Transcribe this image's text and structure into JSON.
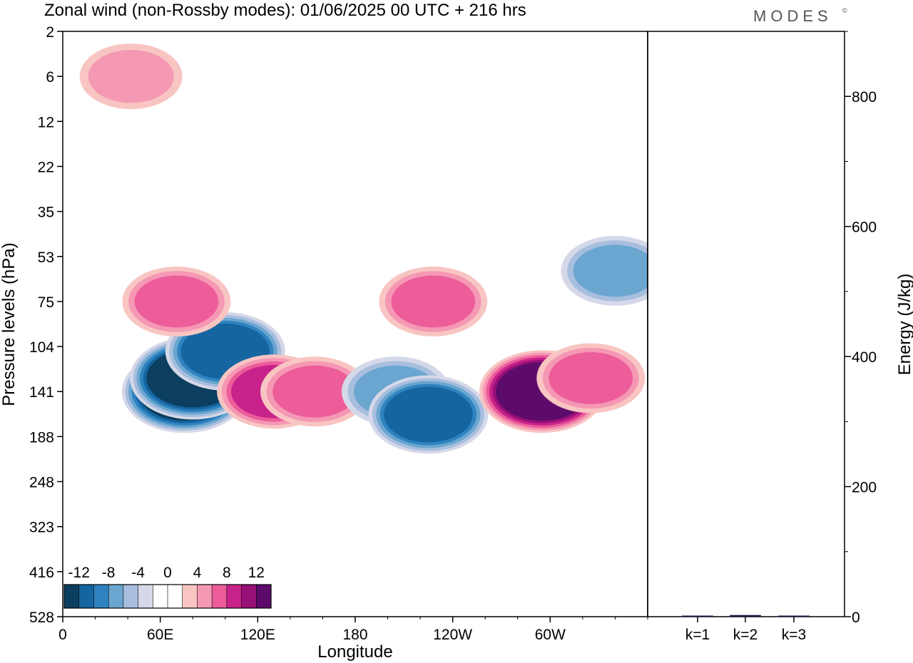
{
  "title": "Zonal wind (non-Rossby modes):  01/06/2025  00 UTC  + 216 hrs",
  "logo": "MODES",
  "logo_mark": "©",
  "chart_data": [
    {
      "type": "heatmap",
      "title": "Zonal wind (non-Rossby modes):  01/06/2025  00 UTC  + 216 hrs",
      "xlabel": "Longitude",
      "ylabel": "Pressure levels (hPa)",
      "x_ticks": [
        "0",
        "60E",
        "120E",
        "180",
        "120W",
        "60W"
      ],
      "x_tick_values": [
        0,
        60,
        120,
        180,
        240,
        300
      ],
      "xlim": [
        0,
        360
      ],
      "y_ticks": [
        "2",
        "6",
        "12",
        "22",
        "35",
        "53",
        "75",
        "104",
        "141",
        "188",
        "248",
        "323",
        "416",
        "528"
      ],
      "colorbar": {
        "labels": [
          "-12",
          "-8",
          "-4",
          "0",
          "4",
          "8",
          "12"
        ],
        "colors": [
          "#0b3e5f",
          "#1565a0",
          "#2e83c0",
          "#6aa6cf",
          "#a7bedf",
          "#d5d8e8",
          "#ffffff",
          "#ffffff",
          "#f8c5c3",
          "#f598b4",
          "#ec5d9a",
          "#c8238a",
          "#961078",
          "#5d0b6a"
        ]
      },
      "cells": [
        {
          "lon": 75,
          "lev": 141,
          "value": -12
        },
        {
          "lon": 80,
          "lev": 130,
          "value": -11
        },
        {
          "lon": 100,
          "lev": 108,
          "value": -9
        },
        {
          "lon": 70,
          "lev": 75,
          "value": 5
        },
        {
          "lon": 42,
          "lev": 6,
          "value": 4
        },
        {
          "lon": 130,
          "lev": 141,
          "value": 7
        },
        {
          "lon": 155,
          "lev": 141,
          "value": 5
        },
        {
          "lon": 205,
          "lev": 141,
          "value": -6
        },
        {
          "lon": 225,
          "lev": 165,
          "value": -9
        },
        {
          "lon": 295,
          "lev": 141,
          "value": 11
        },
        {
          "lon": 325,
          "lev": 130,
          "value": 5
        },
        {
          "lon": 228,
          "lev": 75,
          "value": 5
        },
        {
          "lon": 340,
          "lev": 60,
          "value": -5
        }
      ]
    },
    {
      "type": "bar",
      "categories": [
        "k=1",
        "k=2",
        "k=3"
      ],
      "values": [
        1.5,
        2.5,
        1.0
      ],
      "ylabel": "Energy (J/kg)",
      "ylim": [
        0,
        900
      ],
      "y_ticks": [
        "0",
        "200",
        "400",
        "600",
        "800"
      ],
      "y_tick_values": [
        0,
        200,
        400,
        600,
        800
      ],
      "bar_color": "#1a1a4a"
    }
  ]
}
